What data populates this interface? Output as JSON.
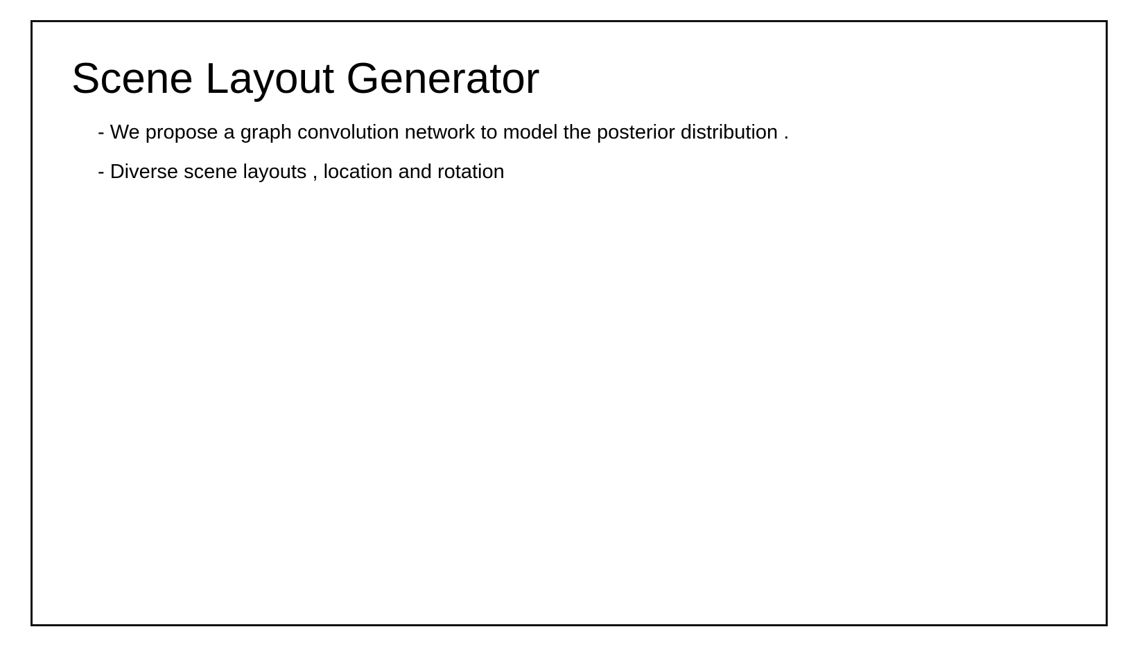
{
  "slide": {
    "title": "Scene Layout Generator",
    "bullets": [
      "- We propose a graph convolution network to model the posterior distribution .",
      "- Diverse scene layouts , location and rotation"
    ]
  },
  "colors": {
    "background": "#ffffff",
    "border": "#111111",
    "text": "#000000"
  }
}
